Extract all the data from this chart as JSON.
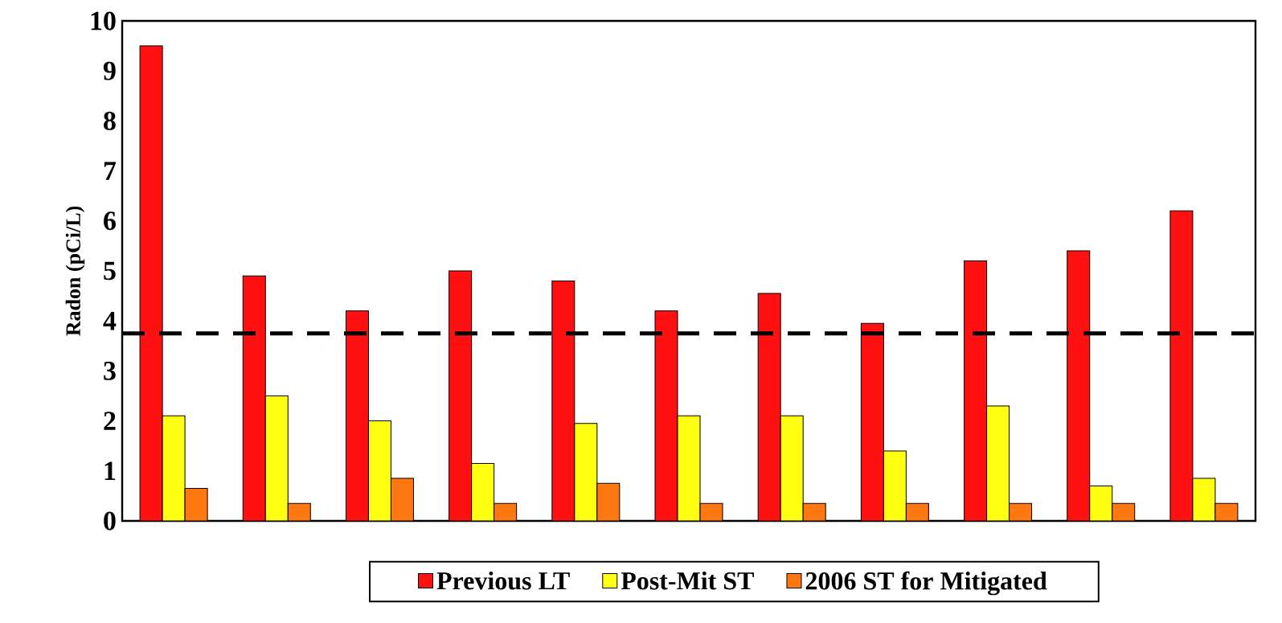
{
  "chart_data": {
    "type": "bar",
    "ylabel": "Radon (pCi/L)",
    "categories": [
      null,
      null,
      null,
      null,
      null,
      null,
      null,
      null,
      null,
      null,
      null
    ],
    "series": [
      {
        "name": "Previous LT",
        "color": "#ff1111",
        "values": [
          9.5,
          4.9,
          4.2,
          5.0,
          4.8,
          4.2,
          4.55,
          3.95,
          5.2,
          5.4,
          6.2
        ]
      },
      {
        "name": "Post-Mit ST",
        "color": "#ffff11",
        "values": [
          2.1,
          2.5,
          2.0,
          1.15,
          1.95,
          2.1,
          2.1,
          1.4,
          2.3,
          0.7,
          0.85
        ]
      },
      {
        "name": "2006 ST for Mitigated",
        "color": "#ff7711",
        "values": [
          0.65,
          0.35,
          0.85,
          0.35,
          0.75,
          0.35,
          0.35,
          0.35,
          0.35,
          0.35,
          0.35
        ]
      }
    ],
    "ylim": [
      0,
      10
    ],
    "yticks": [
      0,
      1,
      2,
      3,
      4,
      5,
      6,
      7,
      8,
      9,
      10
    ],
    "ref_lines": [
      {
        "axis": "y",
        "value": 3.75,
        "line_style": "dashed",
        "color": "#000000"
      }
    ],
    "legend": "bottom",
    "grid": false
  }
}
